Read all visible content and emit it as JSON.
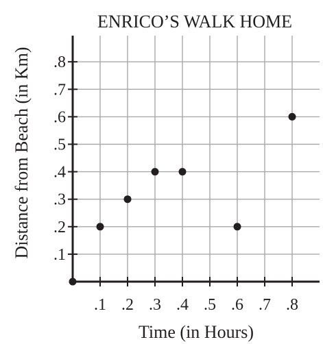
{
  "chart_data": {
    "type": "scatter",
    "title": "ENRICO’S WALK HOME",
    "xlabel": "Time (in Hours)",
    "ylabel": "Distance from Beach (in Km)",
    "xlim": [
      0,
      0.9
    ],
    "ylim": [
      0,
      0.9
    ],
    "x_ticks": [
      0.1,
      0.2,
      0.3,
      0.4,
      0.5,
      0.6,
      0.7,
      0.8
    ],
    "x_tick_labels": [
      ".1",
      ".2",
      ".3",
      ".4",
      ".5",
      ".6",
      ".7",
      ".8"
    ],
    "y_ticks": [
      0.1,
      0.2,
      0.3,
      0.4,
      0.5,
      0.6,
      0.7,
      0.8
    ],
    "y_tick_labels": [
      ".1",
      ".2",
      ".3",
      ".4",
      ".5",
      ".6",
      ".7",
      ".8"
    ],
    "grid": true,
    "points": [
      {
        "x": 0.1,
        "y": 0.2
      },
      {
        "x": 0.2,
        "y": 0.3
      },
      {
        "x": 0.3,
        "y": 0.4
      },
      {
        "x": 0.4,
        "y": 0.4
      },
      {
        "x": 0.6,
        "y": 0.2
      },
      {
        "x": 0.8,
        "y": 0.6
      }
    ],
    "origin_point": {
      "x": 0,
      "y": 0
    },
    "colors": {
      "ink": "#231f20",
      "grid": "#a7a9ac"
    }
  }
}
